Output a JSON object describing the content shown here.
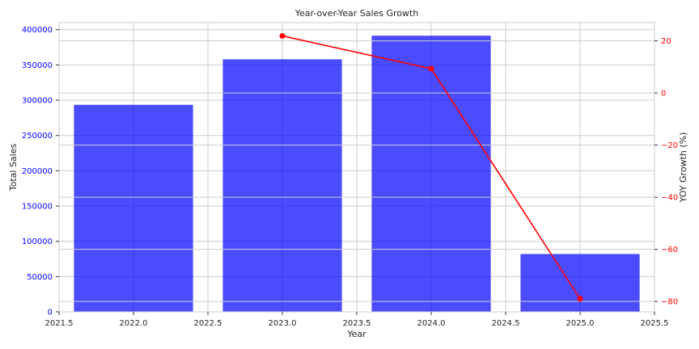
{
  "chart_data": {
    "type": "bar",
    "title": "Year-over-Year Sales Growth",
    "xlabel": "Year",
    "ylabel": "Total Sales",
    "y2label": "YOY Growth (%)",
    "x": [
      2022,
      2023,
      2024,
      2025
    ],
    "series": [
      {
        "type": "bar",
        "axis": "left",
        "values": [
          293500,
          358000,
          391500,
          82000
        ],
        "color": "#0000ff"
      },
      {
        "type": "line",
        "axis": "right",
        "x": [
          2023,
          2024,
          2025
        ],
        "values": [
          21.9,
          9.3,
          -79.0
        ],
        "color": "#ff0000"
      }
    ],
    "xlim": [
      2021.5,
      2025.5
    ],
    "ylim": [
      0,
      410000
    ],
    "y2lim": [
      -84,
      27
    ],
    "xticks": [
      2021.5,
      2022.0,
      2022.5,
      2023.0,
      2023.5,
      2024.0,
      2024.5,
      2025.0,
      2025.5
    ],
    "xtick_labels": [
      "2021.5",
      "2022.0",
      "2022.5",
      "2023.0",
      "2023.5",
      "2024.0",
      "2024.5",
      "2025.0",
      "2025.5"
    ],
    "yticks": [
      0,
      50000,
      100000,
      150000,
      200000,
      250000,
      300000,
      350000,
      400000
    ],
    "ytick_labels": [
      "0",
      "50000",
      "100000",
      "150000",
      "200000",
      "250000",
      "300000",
      "350000",
      "400000"
    ],
    "y2ticks": [
      -80,
      -60,
      -40,
      -20,
      0,
      20
    ],
    "y2tick_labels": [
      "−80",
      "−60",
      "−40",
      "−20",
      "0",
      "20"
    ],
    "left_axis_color": "#0000ff",
    "right_axis_color": "#ff0000",
    "grid": true
  }
}
